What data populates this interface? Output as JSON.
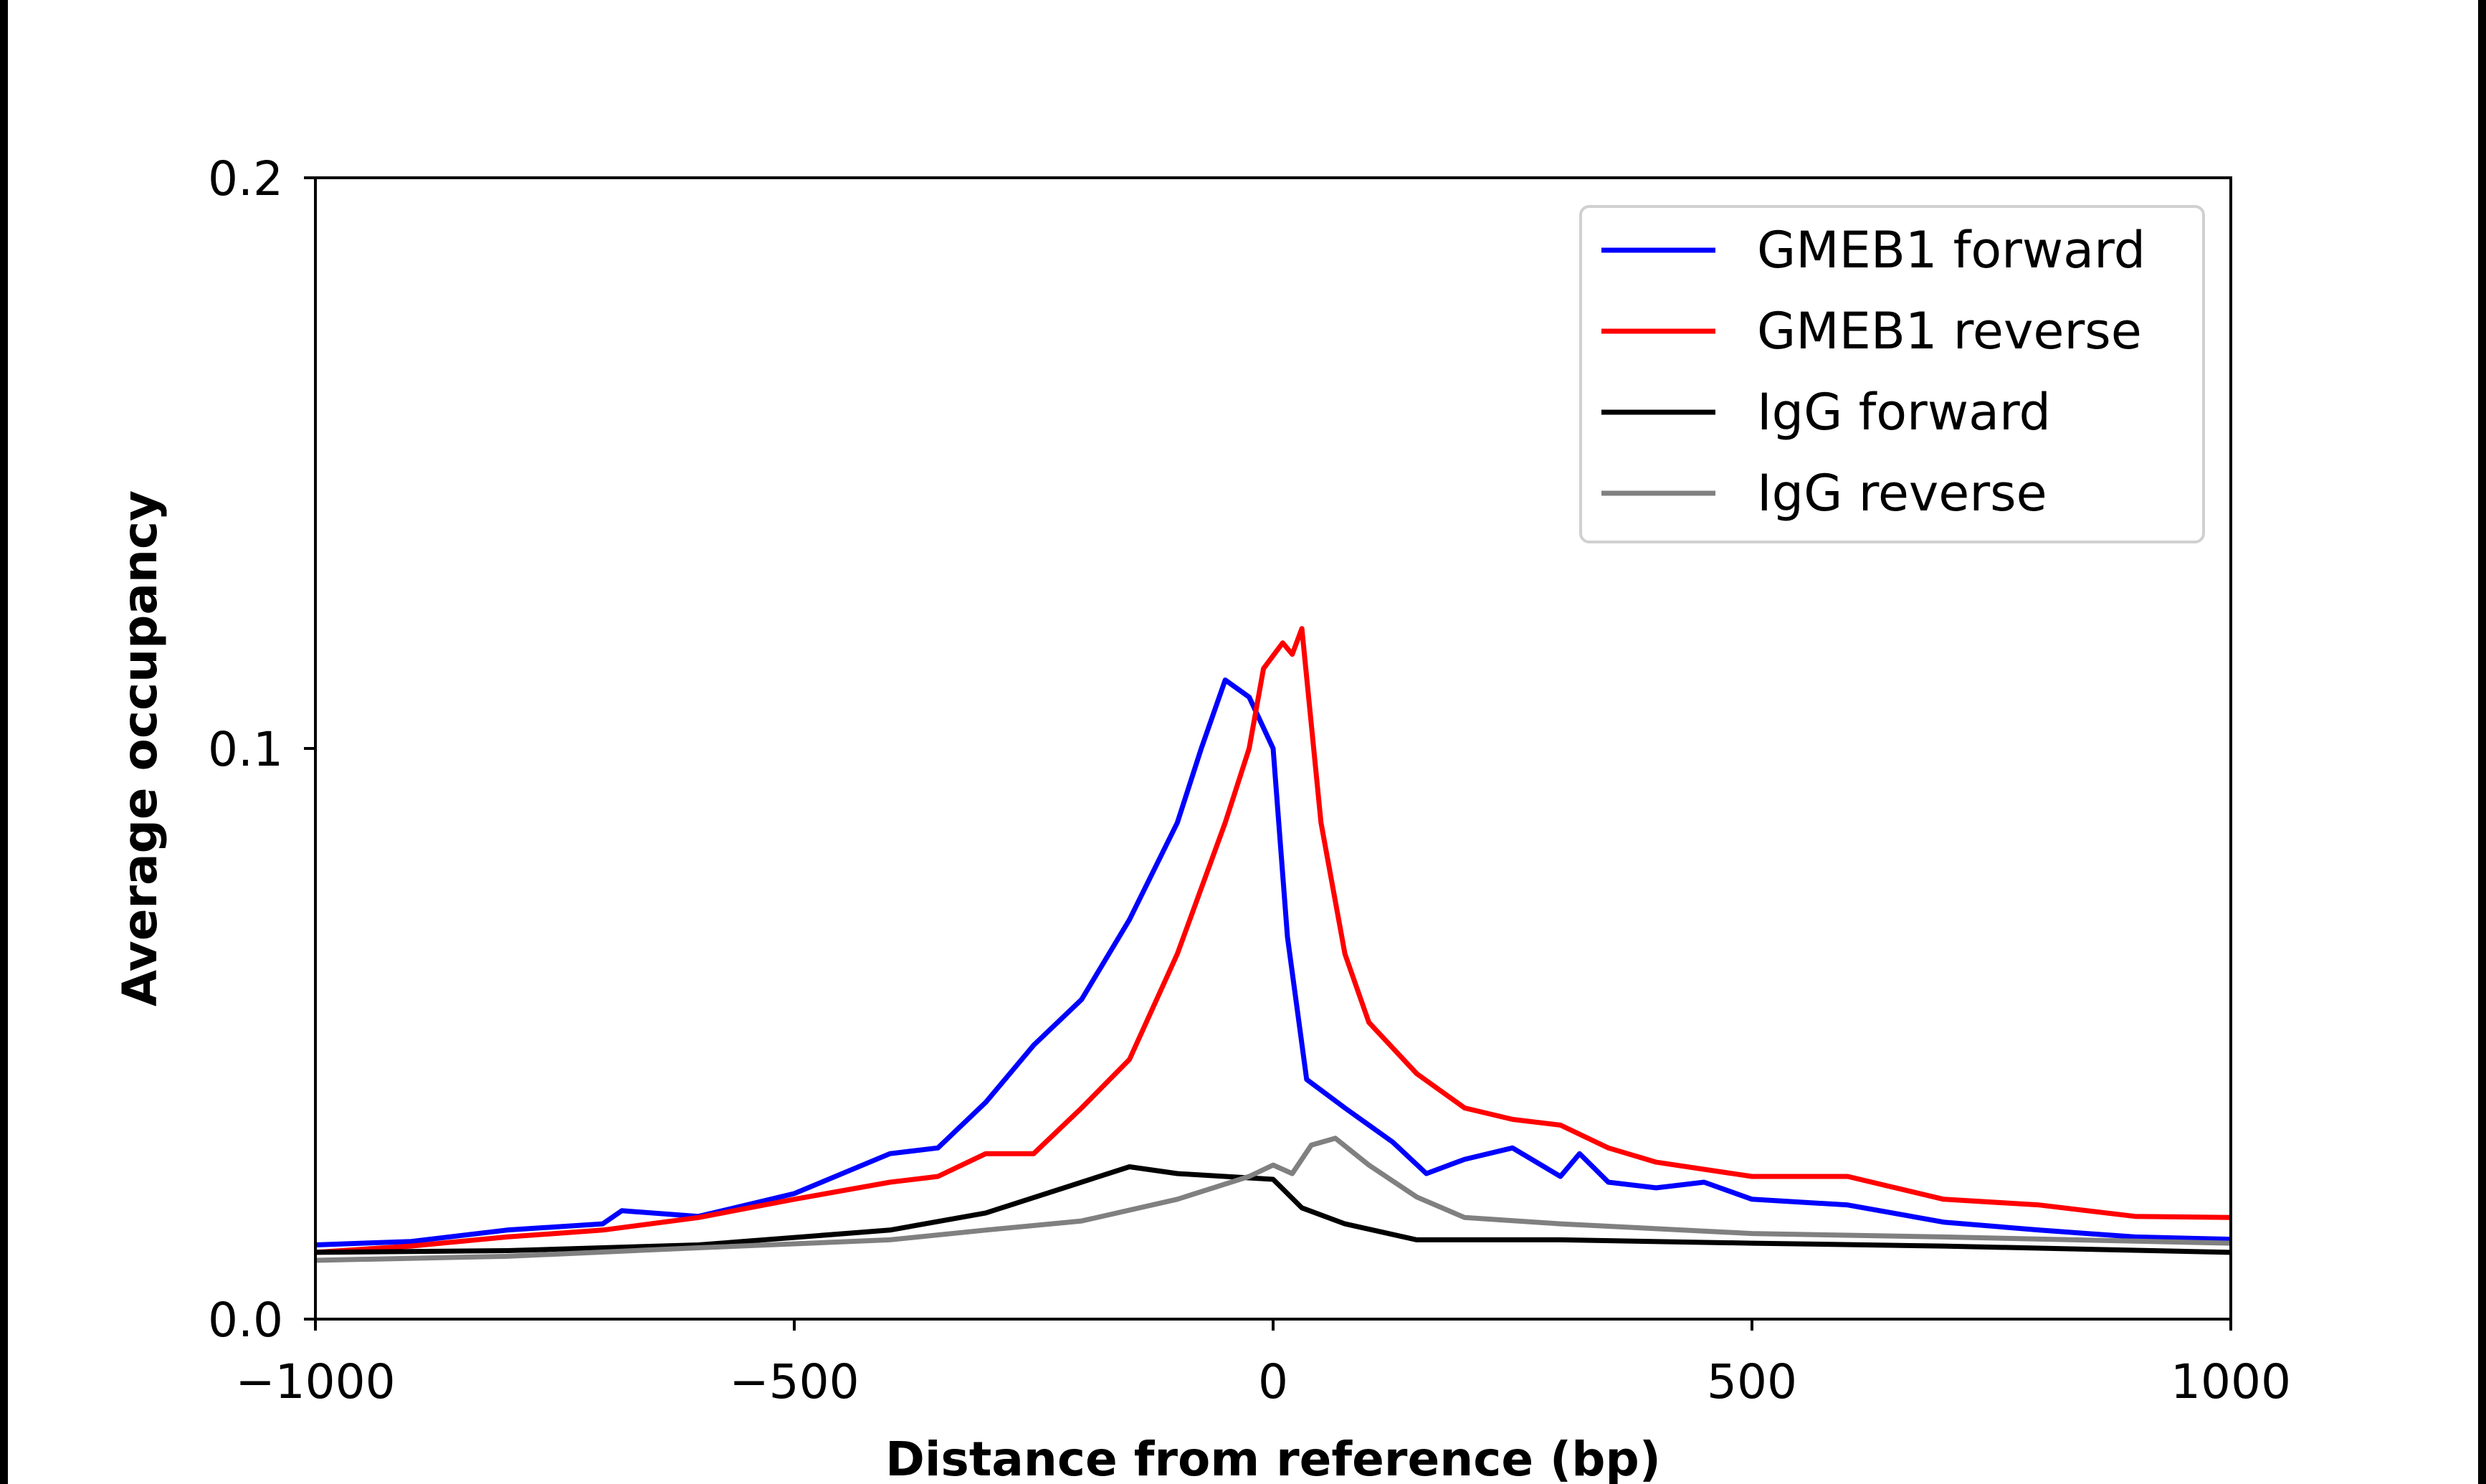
{
  "chart_data": {
    "type": "line",
    "title": "",
    "xlabel": "Distance from reference (bp)",
    "ylabel": "Average occupancy",
    "xlim": [
      -1000,
      1000
    ],
    "ylim": [
      0.0,
      0.2
    ],
    "xticks": [
      -1000,
      -500,
      0,
      500,
      1000
    ],
    "xtick_labels": [
      "−1000",
      "−500",
      "0",
      "500",
      "1000"
    ],
    "yticks": [
      0.0,
      0.1,
      0.2
    ],
    "ytick_labels": [
      "0.0",
      "0.1",
      "0.2"
    ],
    "grid": false,
    "legend_position": "top-right",
    "series": [
      {
        "name": "GMEB1 forward",
        "color": "#0000ff",
        "x": [
          -1000,
          -900,
          -800,
          -700,
          -680,
          -600,
          -500,
          -400,
          -350,
          -300,
          -250,
          -200,
          -150,
          -100,
          -75,
          -50,
          -25,
          0,
          15,
          35,
          75,
          125,
          160,
          200,
          250,
          300,
          320,
          350,
          400,
          450,
          500,
          600,
          700,
          800,
          900,
          1000
        ],
        "y": [
          0.013,
          0.0136,
          0.0156,
          0.0167,
          0.019,
          0.018,
          0.022,
          0.029,
          0.03,
          0.038,
          0.048,
          0.056,
          0.07,
          0.087,
          0.1,
          0.112,
          0.109,
          0.1,
          0.067,
          0.042,
          0.037,
          0.031,
          0.0255,
          0.028,
          0.03,
          0.025,
          0.029,
          0.024,
          0.023,
          0.024,
          0.021,
          0.02,
          0.017,
          0.0156,
          0.0144,
          0.014
        ]
      },
      {
        "name": "GMEB1 reverse",
        "color": "#ff0000",
        "x": [
          -1000,
          -900,
          -800,
          -700,
          -600,
          -500,
          -400,
          -350,
          -300,
          -250,
          -200,
          -150,
          -100,
          -50,
          -25,
          -10,
          10,
          20,
          30,
          50,
          75,
          100,
          150,
          200,
          250,
          300,
          350,
          400,
          500,
          600,
          700,
          800,
          900,
          1000
        ],
        "y": [
          0.0117,
          0.0128,
          0.0144,
          0.0156,
          0.0178,
          0.021,
          0.024,
          0.025,
          0.029,
          0.029,
          0.037,
          0.0455,
          0.064,
          0.087,
          0.1,
          0.114,
          0.1185,
          0.1165,
          0.121,
          0.087,
          0.064,
          0.052,
          0.043,
          0.037,
          0.035,
          0.034,
          0.03,
          0.0275,
          0.025,
          0.025,
          0.021,
          0.02,
          0.018,
          0.0178
        ]
      },
      {
        "name": "IgG forward",
        "color": "#000000",
        "x": [
          -1000,
          -800,
          -600,
          -400,
          -300,
          -200,
          -150,
          -100,
          -50,
          0,
          30,
          75,
          150,
          300,
          500,
          700,
          1000
        ],
        "y": [
          0.0117,
          0.012,
          0.013,
          0.0156,
          0.0186,
          0.024,
          0.0267,
          0.0255,
          0.025,
          0.0245,
          0.0195,
          0.0167,
          0.0139,
          0.0139,
          0.0133,
          0.0128,
          0.0117
        ]
      },
      {
        "name": "IgG reverse",
        "color": "#808080",
        "x": [
          -1000,
          -800,
          -600,
          -400,
          -300,
          -200,
          -100,
          -25,
          0,
          20,
          40,
          65,
          100,
          150,
          200,
          300,
          500,
          700,
          1000
        ],
        "y": [
          0.0103,
          0.011,
          0.0125,
          0.0139,
          0.0156,
          0.0172,
          0.021,
          0.025,
          0.027,
          0.0255,
          0.0305,
          0.0317,
          0.027,
          0.0214,
          0.0178,
          0.0167,
          0.015,
          0.0144,
          0.0133
        ]
      }
    ]
  }
}
